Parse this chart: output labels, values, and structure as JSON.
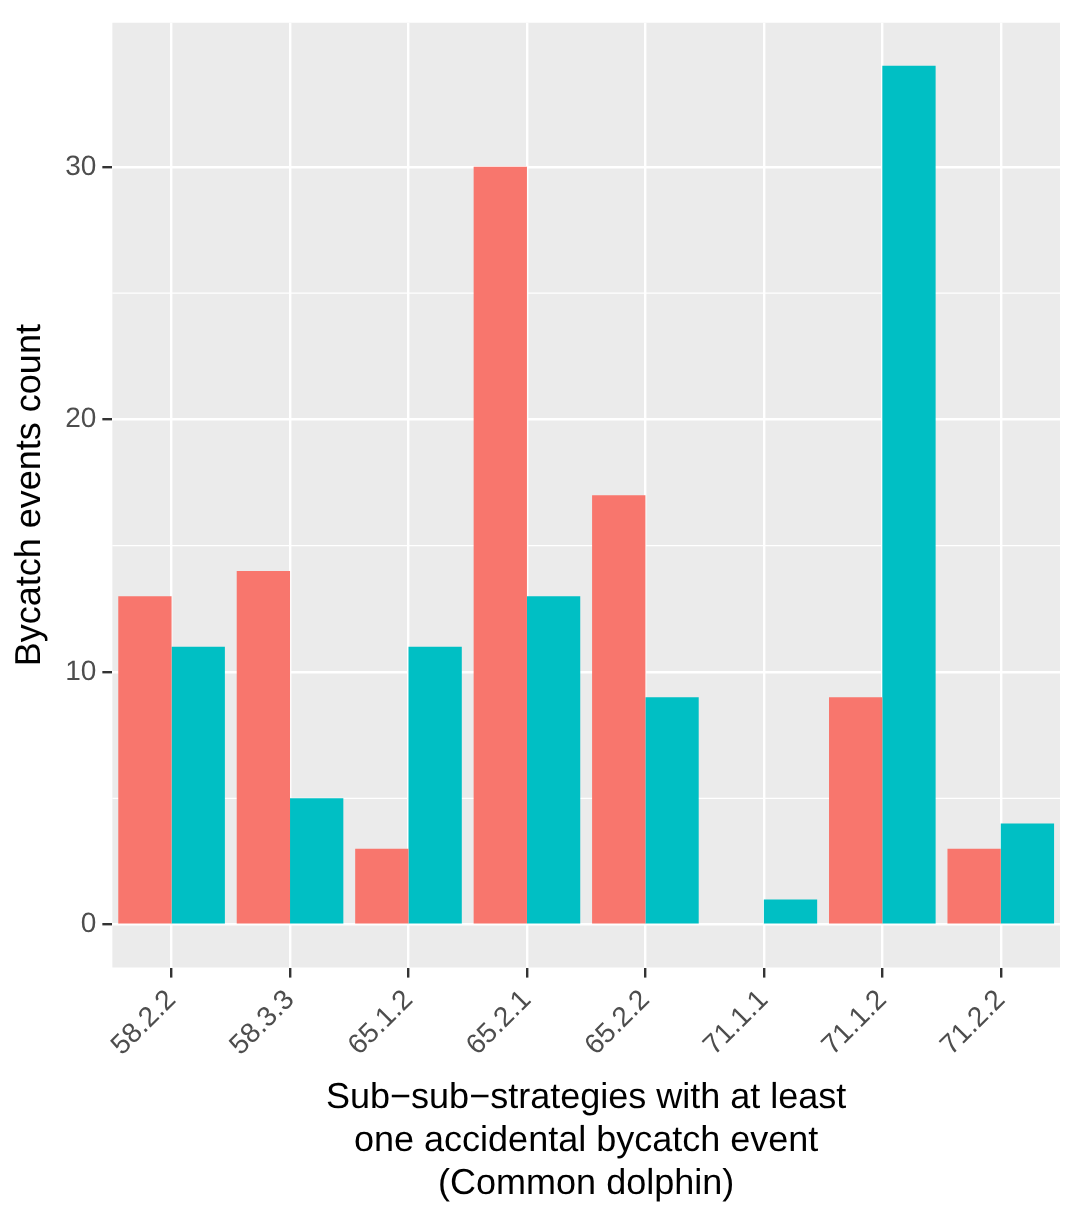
{
  "chart_data": {
    "type": "bar",
    "xlabel": "Sub−sub−strategies with at least\none accidental bycatch event\n(Common dolphin)",
    "ylabel": "Bycatch events count",
    "categories": [
      "58.2.2",
      "58.3.3",
      "65.1.2",
      "65.2.1",
      "65.2.2",
      "71.1.1",
      "71.1.2",
      "71.2.2"
    ],
    "series": [
      {
        "color": "#f8766d",
        "values": [
          13,
          14,
          3,
          30,
          17,
          null,
          9,
          3
        ]
      },
      {
        "color": "#00bfc4",
        "values": [
          11,
          5,
          11,
          13,
          9,
          1,
          34,
          4
        ]
      }
    ],
    "ylim": [
      -1.7,
      35.7
    ],
    "yticks": [
      0,
      10,
      20,
      30
    ],
    "grid": true,
    "legend": false
  }
}
